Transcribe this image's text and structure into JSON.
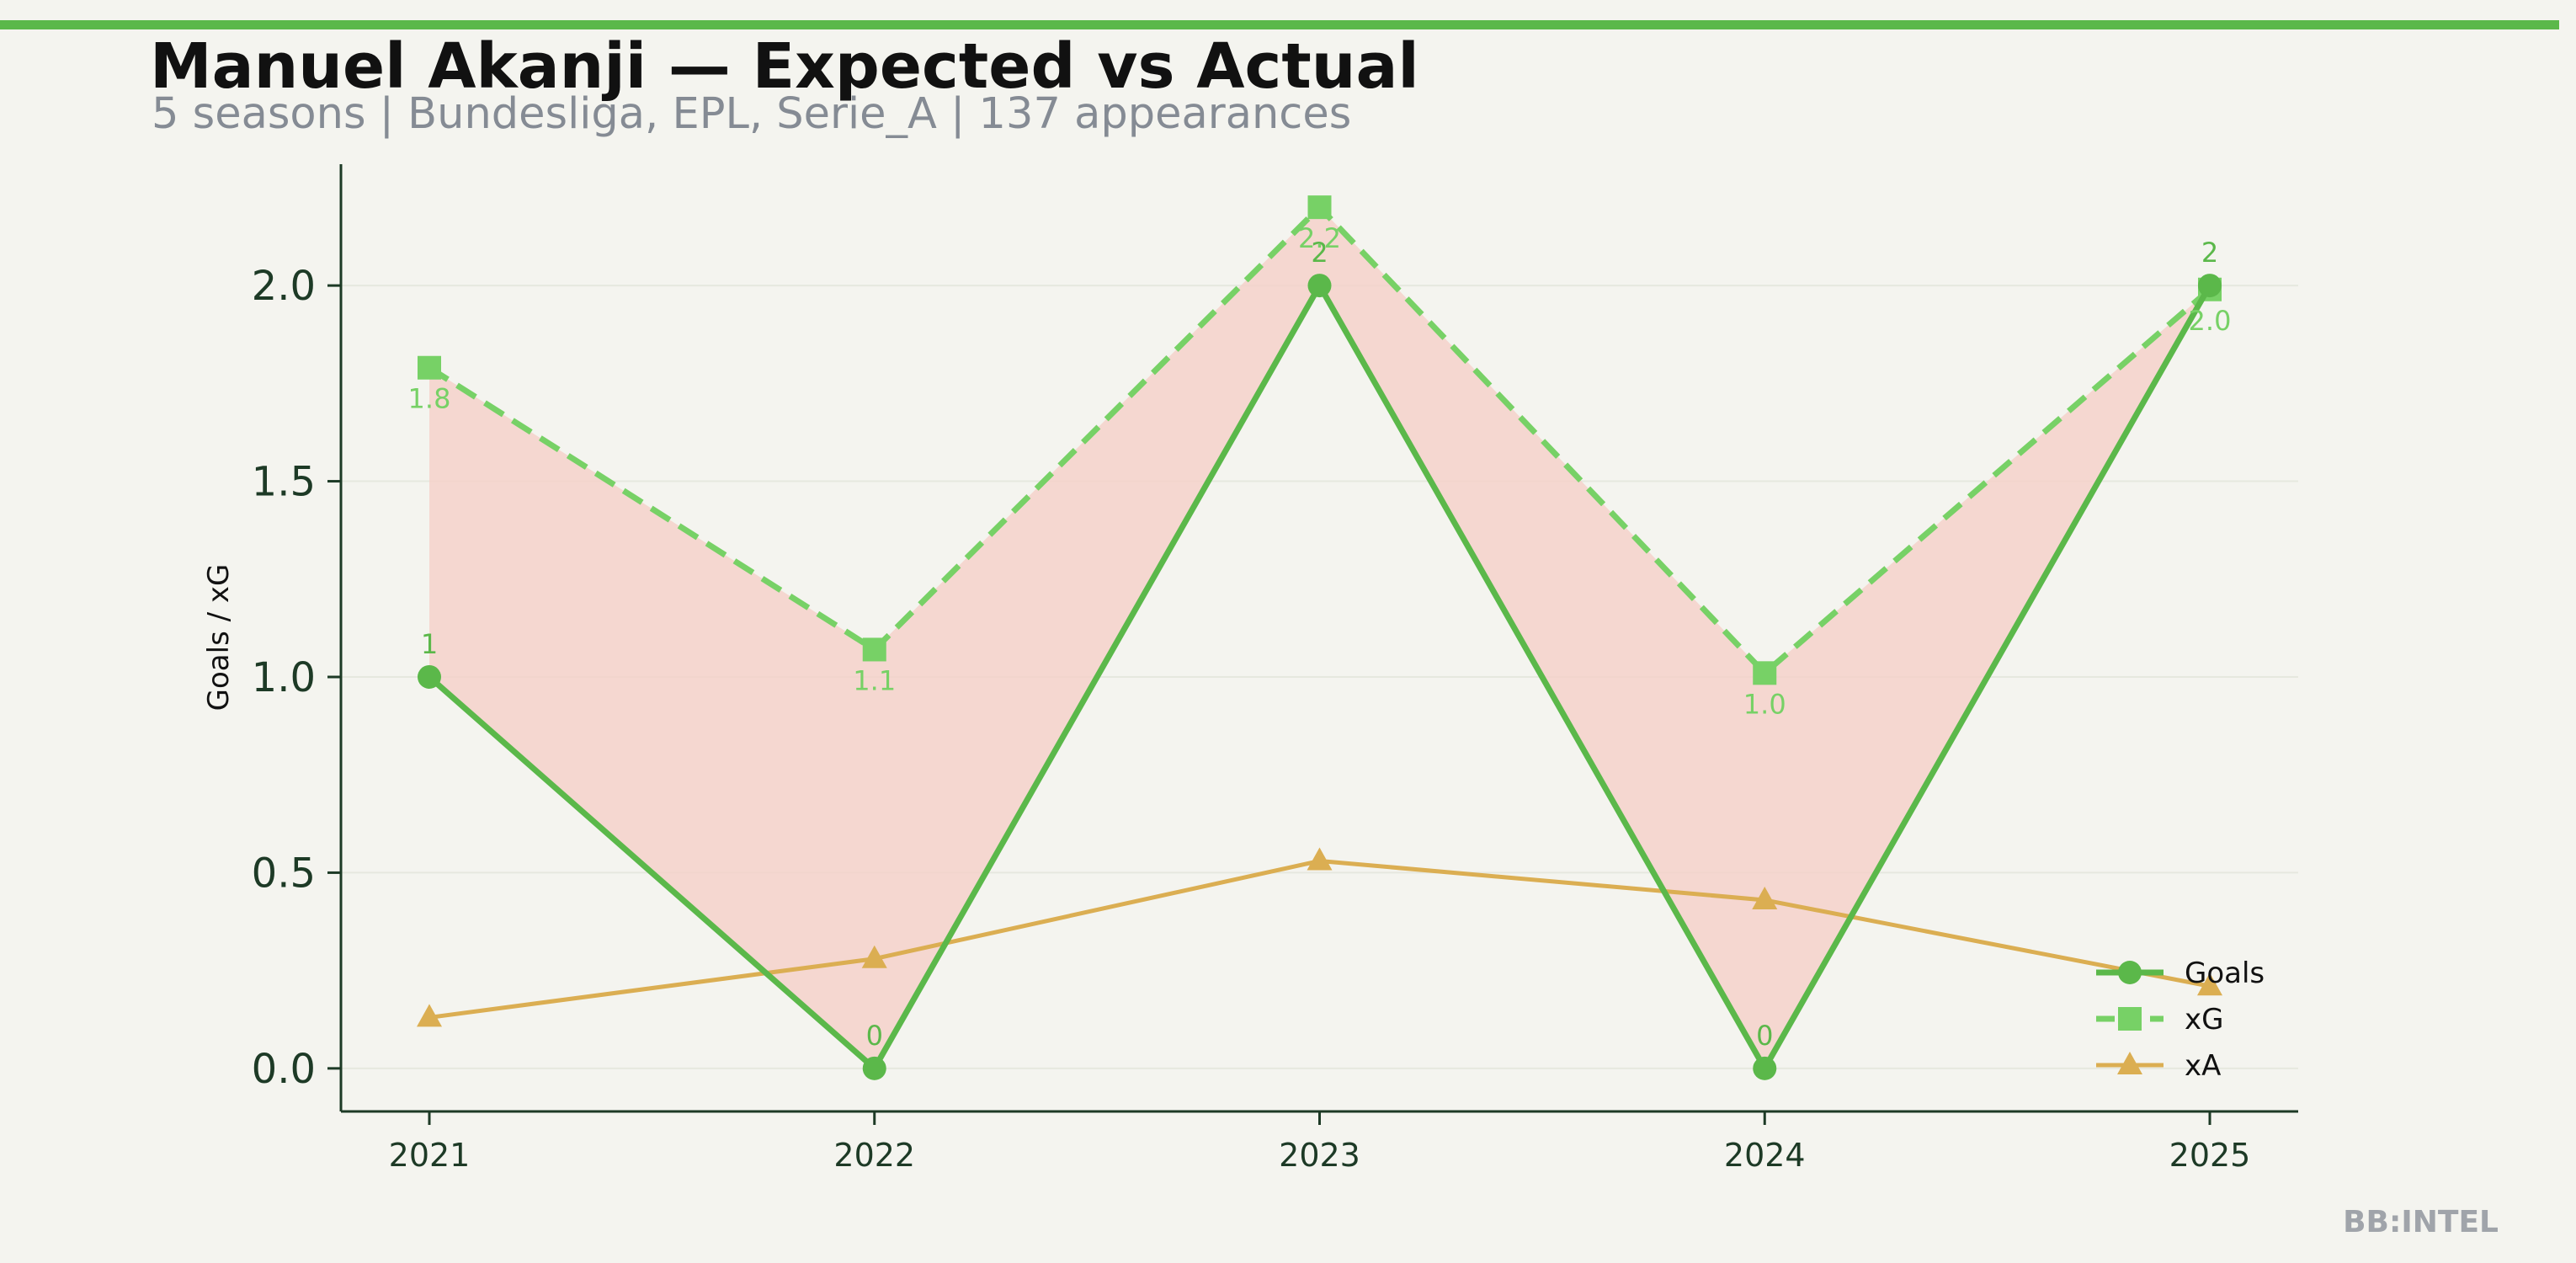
{
  "chart_data": {
    "type": "line",
    "title": "Manuel Akanji — Expected vs Actual",
    "subtitle": "5 seasons | Bundesliga, EPL, Serie_A | 137 appearances",
    "xlabel": "",
    "ylabel": "Goals / xG",
    "x": [
      "2021",
      "2022",
      "2023",
      "2024",
      "2025"
    ],
    "ylim": [
      -0.11,
      2.31
    ],
    "yticks": [
      "0.0",
      "0.5",
      "1.0",
      "1.5",
      "2.0"
    ],
    "grid": "horizontal, faint",
    "legend": "bottom-right",
    "series": [
      {
        "name": "Goals",
        "values": [
          1,
          0,
          2,
          0,
          2
        ],
        "labels": [
          "1",
          "0",
          "2",
          "0",
          "2"
        ],
        "color": "#5bb84a",
        "marker": "circle",
        "style": "solid"
      },
      {
        "name": "xG",
        "values": [
          1.79,
          1.07,
          2.2,
          1.01,
          1.99
        ],
        "labels": [
          "1.8",
          "1.1",
          "2.2",
          "1.0",
          "2.0"
        ],
        "color": "#77d166",
        "marker": "square",
        "style": "dashed"
      },
      {
        "name": "xA",
        "values": [
          0.13,
          0.28,
          0.53,
          0.43,
          0.21
        ],
        "color": "#dbae52",
        "marker": "triangle",
        "style": "solid"
      }
    ],
    "fill_between": {
      "series": [
        "Goals",
        "xG"
      ],
      "color": "#f5d0c8"
    }
  },
  "brand": "BB:INTEL",
  "colors": {
    "background": "#f4f4ef",
    "accent_bar": "#5bb84a",
    "axis": "#1d3a26",
    "title": "#111111",
    "subtitle": "#858b94",
    "brand": "#a0a4aa"
  }
}
